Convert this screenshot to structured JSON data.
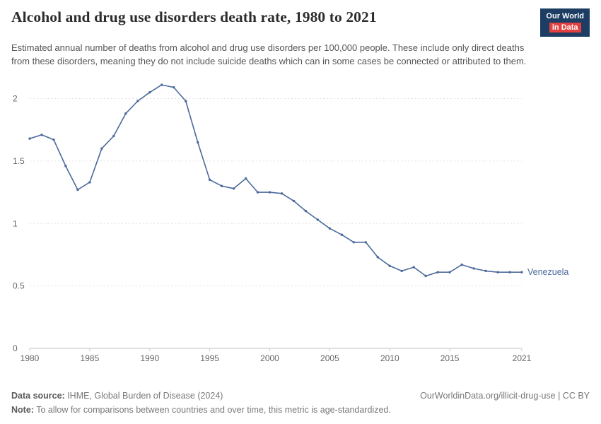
{
  "header": {
    "title": "Alcohol and drug use disorders death rate, 1980 to 2021",
    "subtitle": "Estimated annual number of deaths from alcohol and drug use disorders per 100,000 people. These include only direct deaths from these disorders, meaning they do not include suicide deaths which can in some cases be connected or attributed to them.",
    "logo": {
      "line1": "Our World",
      "line2": "in Data",
      "bg": "#1d3d63",
      "accent": "#e0403f"
    }
  },
  "chart_data": {
    "type": "line",
    "title": "Alcohol and drug use disorders death rate, 1980 to 2021",
    "xlabel": "",
    "ylabel": "",
    "xlim": [
      1980,
      2021
    ],
    "ylim": [
      0,
      2.15
    ],
    "x_ticks": [
      1980,
      1985,
      1990,
      1995,
      2000,
      2005,
      2010,
      2015,
      2021
    ],
    "y_ticks": [
      0,
      0.5,
      1,
      1.5,
      2
    ],
    "grid": "dashed horizontal gridlines",
    "legend_position": "end-of-line label",
    "series": [
      {
        "name": "Venezuela",
        "color": "#4c6a9c",
        "x": [
          1980,
          1981,
          1982,
          1983,
          1984,
          1985,
          1986,
          1987,
          1988,
          1989,
          1990,
          1991,
          1992,
          1993,
          1994,
          1995,
          1996,
          1997,
          1998,
          1999,
          2000,
          2001,
          2002,
          2003,
          2004,
          2005,
          2006,
          2007,
          2008,
          2009,
          2010,
          2011,
          2012,
          2013,
          2014,
          2015,
          2016,
          2017,
          2018,
          2019,
          2020,
          2021
        ],
        "values": [
          1.68,
          1.71,
          1.67,
          1.46,
          1.27,
          1.33,
          1.6,
          1.7,
          1.88,
          1.98,
          2.05,
          2.11,
          2.09,
          1.98,
          1.65,
          1.35,
          1.3,
          1.28,
          1.36,
          1.25,
          1.25,
          1.24,
          1.18,
          1.1,
          1.03,
          0.96,
          0.91,
          0.85,
          0.85,
          0.73,
          0.66,
          0.62,
          0.65,
          0.58,
          0.61,
          0.61,
          0.67,
          0.64,
          0.62,
          0.61,
          0.61,
          0.61
        ]
      }
    ]
  },
  "footer": {
    "datasource_label": "Data source:",
    "datasource_value": " IHME, Global Burden of Disease (2024)",
    "url": "OurWorldinData.org/illicit-drug-use | CC BY",
    "note_label": "Note:",
    "note_value": " To allow for comparisons between countries and over time, this metric is age-standardized."
  }
}
